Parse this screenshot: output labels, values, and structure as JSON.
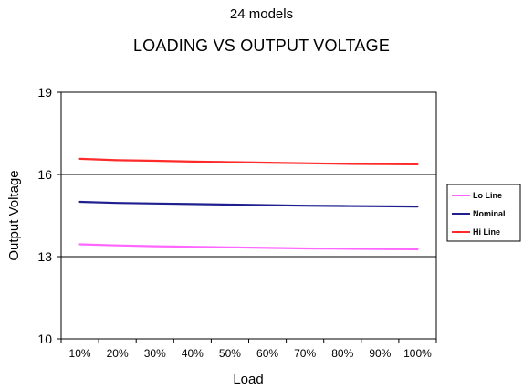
{
  "subtitle": "24 models",
  "chart_data": {
    "type": "line",
    "title": "LOADING VS OUTPUT VOLTAGE",
    "xlabel": "Load",
    "ylabel": "Output Voltage",
    "categories": [
      "10%",
      "20%",
      "30%",
      "40%",
      "50%",
      "60%",
      "70%",
      "80%",
      "90%",
      "100%"
    ],
    "ylim": [
      10,
      19
    ],
    "yticks": [
      10,
      13,
      16,
      19
    ],
    "gridlines": [
      13,
      16
    ],
    "legend_position": "right",
    "series": [
      {
        "name": "Lo Line",
        "color": "#ff66ff",
        "values": [
          13.45,
          13.41,
          13.38,
          13.36,
          13.34,
          13.32,
          13.3,
          13.29,
          13.28,
          13.27
        ]
      },
      {
        "name": "Nominal",
        "color": "#1f1f8f",
        "values": [
          15.0,
          14.96,
          14.94,
          14.92,
          14.9,
          14.88,
          14.86,
          14.85,
          14.84,
          14.83
        ]
      },
      {
        "name": "Hi Line",
        "color": "#ff2a2a",
        "values": [
          16.57,
          16.52,
          16.5,
          16.47,
          16.45,
          16.43,
          16.41,
          16.39,
          16.38,
          16.37
        ]
      }
    ]
  }
}
